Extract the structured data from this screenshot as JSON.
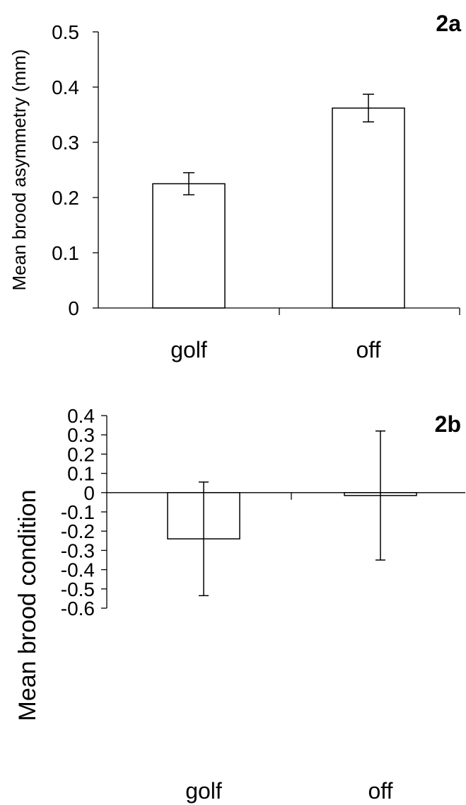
{
  "chart_data": [
    {
      "type": "bar",
      "title": "2a",
      "xlabel": "",
      "ylabel": "Mean brood asymmetry (mm)",
      "categories": [
        "golf",
        "off"
      ],
      "values": [
        0.225,
        0.362
      ],
      "errors": [
        0.02,
        0.025
      ],
      "ylim": [
        0,
        0.5
      ],
      "yticks": [
        "0",
        "0.1",
        "0.2",
        "0.3",
        "0.4",
        "0.5"
      ],
      "grid": false,
      "colors": {
        "bar_fill": "#ffffff",
        "bar_stroke": "#000000",
        "axis": "#000000"
      }
    },
    {
      "type": "bar",
      "title": "2b",
      "xlabel": "",
      "ylabel": "Mean brood condition",
      "categories": [
        "golf",
        "off"
      ],
      "values": [
        -0.24,
        -0.015
      ],
      "errors": [
        0.295,
        0.335
      ],
      "ylim": [
        -0.6,
        0.4
      ],
      "yticks": [
        "0.4",
        "0.3",
        "0.2",
        "0.1",
        "0",
        "-0.1",
        "-0.2",
        "-0.3",
        "-0.4",
        "-0.5",
        "-0.6"
      ],
      "grid": false,
      "colors": {
        "bar_fill": "#ffffff",
        "bar_stroke": "#000000",
        "axis": "#000000"
      }
    }
  ]
}
